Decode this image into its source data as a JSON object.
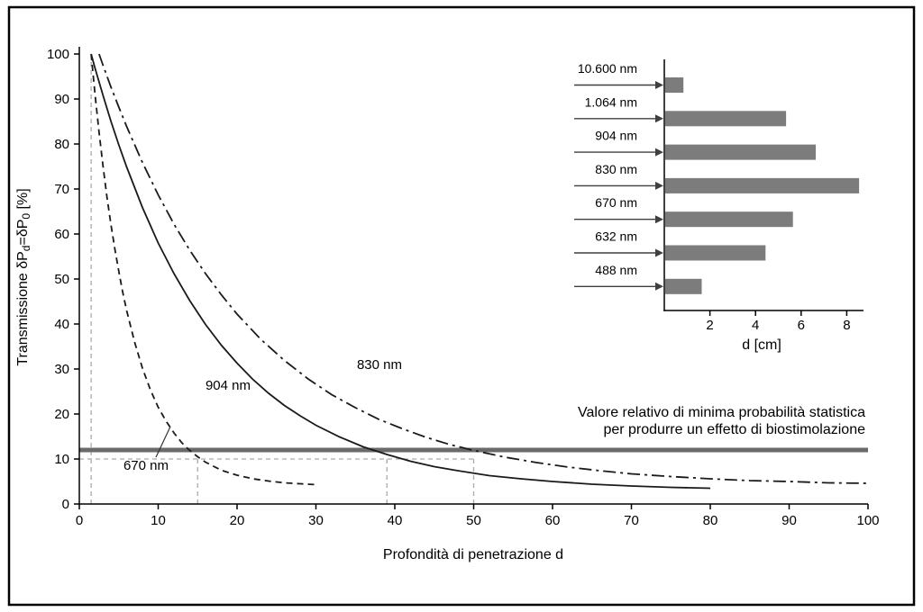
{
  "chart_data": [
    {
      "type": "line",
      "title": "",
      "xlabel": "Profondità di penetrazione d",
      "ylabel": "Transmissione δPd=δP0 [%]",
      "ylabel_parts": {
        "pre": "Transmissione δP",
        "sub1": "d",
        "mid": "=δP",
        "sub2": "0",
        "post": " [%]"
      },
      "xlim": [
        0,
        100
      ],
      "ylim": [
        0,
        100
      ],
      "xticks": [
        0,
        10,
        20,
        30,
        40,
        50,
        60,
        70,
        80,
        90,
        100
      ],
      "yticks": [
        0,
        10,
        20,
        30,
        40,
        50,
        60,
        70,
        80,
        90,
        100
      ],
      "grid": false,
      "legend_position": "inline-labels",
      "series": [
        {
          "name": "670 nm",
          "line_style": "dashed",
          "x": [
            1.5,
            2,
            2.5,
            3,
            3.5,
            4,
            4.5,
            5,
            5.5,
            6,
            7,
            8,
            9,
            10,
            11,
            12,
            13,
            14,
            15,
            16,
            18,
            20,
            22,
            24,
            26,
            28,
            30
          ],
          "y": [
            100,
            90.9,
            82.6,
            75.1,
            68.3,
            62.2,
            56.7,
            51.7,
            47.1,
            43,
            36,
            30.2,
            25.4,
            21.5,
            18.4,
            15.8,
            13.6,
            11.9,
            10.5,
            9.3,
            7.5,
            6.4,
            5.6,
            5.1,
            4.7,
            4.5,
            4.3
          ]
        },
        {
          "name": "904 nm",
          "line_style": "solid",
          "x": [
            1.5,
            2,
            3,
            4,
            5,
            6,
            8,
            10,
            12,
            14,
            16,
            18,
            20,
            22,
            24,
            26,
            28,
            30,
            33,
            36,
            39,
            42,
            45,
            48,
            52,
            56,
            60,
            65,
            70,
            75,
            80
          ],
          "y": [
            100,
            96.8,
            90.8,
            85.1,
            79.8,
            74.9,
            65.9,
            58,
            51.2,
            45.2,
            39.9,
            35.3,
            31.3,
            27.7,
            24.6,
            21.9,
            19.6,
            17.5,
            14.9,
            12.7,
            11,
            9.5,
            8.3,
            7.4,
            6.3,
            5.6,
            5,
            4.4,
            4,
            3.7,
            3.5
          ]
        },
        {
          "name": "830 nm",
          "line_style": "dashdot",
          "x": [
            2.5,
            3,
            4,
            5,
            6,
            8,
            10,
            12,
            14,
            16,
            18,
            20,
            23,
            26,
            29,
            32,
            35,
            38,
            41,
            44,
            47,
            50,
            54,
            58,
            62,
            66,
            70,
            75,
            80,
            85,
            90,
            95,
            100
          ],
          "y": [
            100,
            97.5,
            92.7,
            88.2,
            83.9,
            75.9,
            68.7,
            62.2,
            56.4,
            51.2,
            46.5,
            42.2,
            36.6,
            31.9,
            27.8,
            24.3,
            21.4,
            18.8,
            16.7,
            14.8,
            13.2,
            11.9,
            10.4,
            9.2,
            8.2,
            7.4,
            6.7,
            6.1,
            5.6,
            5.2,
            5,
            4.7,
            4.6
          ]
        }
      ],
      "threshold": {
        "y": 12,
        "color": "#6a6a6a",
        "label": [
          "Valore relativo di minima probabilità statistica",
          "per produrre un effetto di biostimolazione"
        ]
      },
      "guides": {
        "vline_full": 1.5,
        "hline": {
          "y": 10,
          "x_end": 50
        },
        "vlines": [
          15,
          39,
          50
        ]
      }
    },
    {
      "type": "bar",
      "orientation": "horizontal",
      "categories": [
        "10.600 nm",
        "1.064 nm",
        "904 nm",
        "830 nm",
        "670 nm",
        "632 nm",
        "488 nm"
      ],
      "values": [
        0.8,
        5.3,
        6.6,
        8.5,
        5.6,
        4.4,
        1.6
      ],
      "xlabel": "d [cm]",
      "xticks": [
        2,
        4,
        6,
        8
      ],
      "xlim": [
        0,
        9
      ],
      "bar_color": "#7c7c7c"
    }
  ]
}
